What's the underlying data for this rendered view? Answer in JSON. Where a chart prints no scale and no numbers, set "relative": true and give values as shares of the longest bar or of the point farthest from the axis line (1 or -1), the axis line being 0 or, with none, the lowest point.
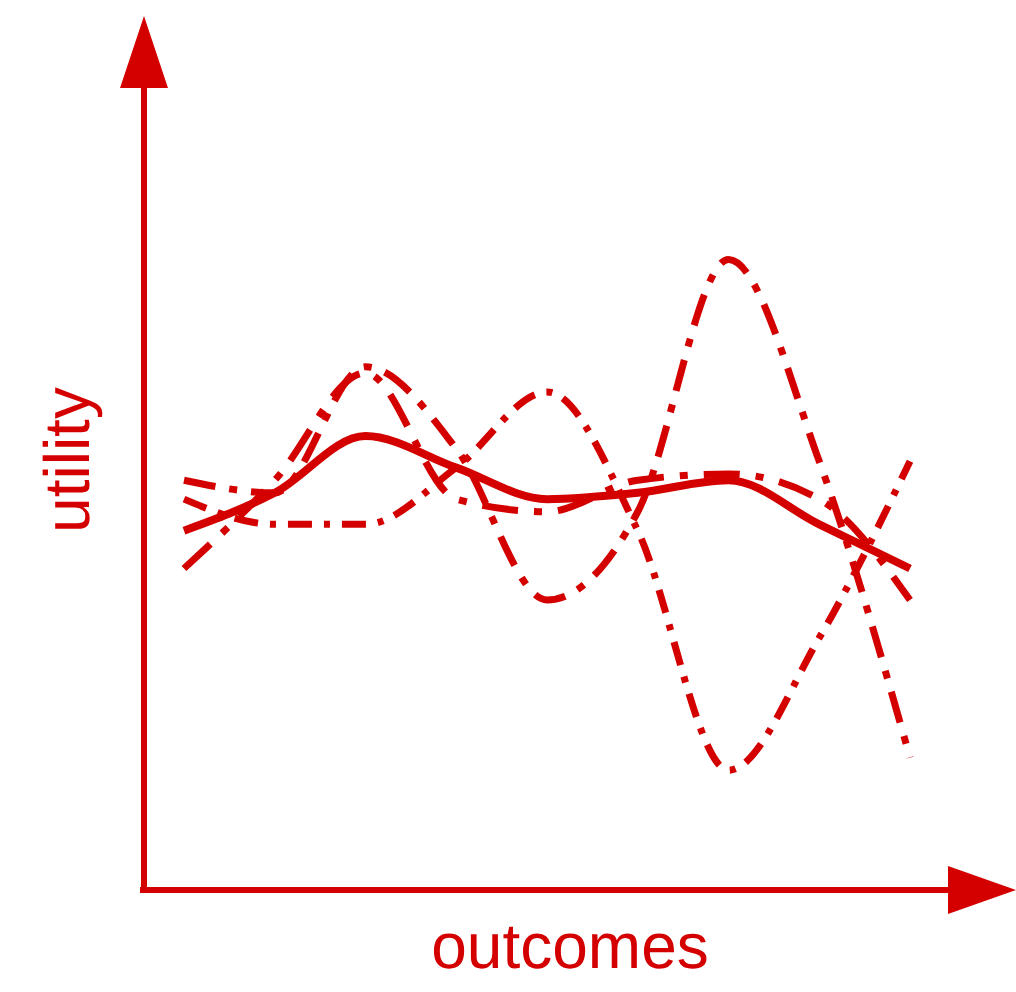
{
  "chart_data": {
    "type": "line",
    "relative": true,
    "xlabel": "outcomes",
    "ylabel": "utility",
    "categories": [
      null,
      null,
      null,
      null,
      null,
      null,
      null,
      null,
      null
    ],
    "legend": false,
    "grid": false,
    "marker": "none",
    "series": [
      {
        "color": "#d40000",
        "line_style": "solid",
        "values": [
          0.57,
          0.63,
          0.72,
          0.67,
          0.62,
          0.63,
          0.65,
          0.58,
          0.51
        ]
      },
      {
        "color": "#d40000",
        "line_style": "dashed",
        "values": [
          0.65,
          0.63,
          0.83,
          0.7,
          0.46,
          0.6,
          1.0,
          0.68,
          0.21
        ]
      },
      {
        "color": "#d40000",
        "line_style": "dashed",
        "values": [
          0.62,
          0.58,
          0.58,
          0.67,
          0.79,
          0.57,
          0.19,
          0.4,
          0.68
        ]
      },
      {
        "color": "#d40000",
        "line_style": "dashed",
        "values": [
          0.51,
          0.65,
          0.82,
          0.62,
          0.6,
          0.65,
          0.66,
          0.62,
          0.46
        ]
      }
    ]
  }
}
